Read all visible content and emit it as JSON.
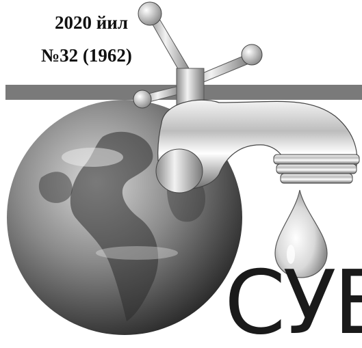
{
  "masthead": {
    "issue_year": "2020 йил",
    "issue_number": "№32 (1962)"
  },
  "headline": {
    "partial_text": "СУВ"
  }
}
